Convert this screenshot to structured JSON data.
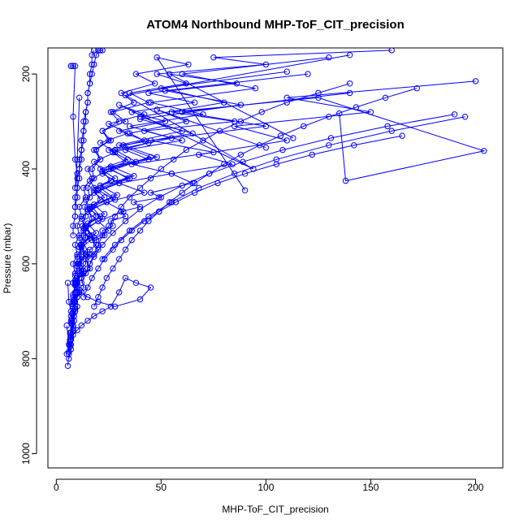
{
  "chart_data": {
    "type": "line",
    "title": "ATOM4 Northbound MHP-ToF_CIT_precision",
    "xlabel": "MHP-ToF_CIT_precision",
    "ylabel": "Pressure (mbar)",
    "xlim": [
      -4,
      213
    ],
    "ylim": [
      1030,
      145
    ],
    "y_inverted": true,
    "x_ticks": [
      0,
      50,
      100,
      150,
      200
    ],
    "y_ticks": [
      200,
      400,
      600,
      800,
      1000
    ],
    "x_tick_labels": [
      "0",
      "50",
      "100",
      "150",
      "200"
    ],
    "y_tick_labels": [
      "200",
      "400",
      "600",
      "800",
      "1000"
    ],
    "grid": false,
    "marker": "open-circle",
    "color": "#0000ff",
    "series": [
      {
        "x": [
          5.5,
          6,
          7,
          6.5,
          8,
          7,
          9,
          8,
          10,
          9,
          12,
          10,
          14,
          11,
          16,
          13,
          20,
          15,
          24,
          18,
          30,
          22,
          38,
          28,
          55,
          35,
          70,
          45,
          95,
          60,
          130
        ],
        "y": [
          815,
          790,
          770,
          745,
          730,
          710,
          690,
          670,
          650,
          635,
          615,
          600,
          580,
          565,
          545,
          530,
          510,
          490,
          470,
          450,
          430,
          410,
          385,
          360,
          335,
          310,
          285,
          260,
          230,
          200,
          165
        ]
      },
      {
        "x": [
          6,
          7,
          6.5,
          8,
          7.5,
          9,
          8,
          11,
          9,
          13,
          10,
          15,
          12,
          18,
          14,
          22,
          16,
          28,
          20,
          35,
          25,
          45,
          30,
          60,
          40,
          80,
          50,
          110
        ],
        "y": [
          800,
          780,
          760,
          740,
          720,
          700,
          680,
          660,
          640,
          620,
          600,
          585,
          565,
          545,
          525,
          505,
          485,
          465,
          445,
          420,
          400,
          375,
          350,
          320,
          290,
          260,
          230,
          195
        ]
      },
      {
        "x": [
          5,
          6.5,
          7,
          8,
          8.5,
          10,
          10,
          13,
          12,
          16,
          14,
          20,
          17,
          25,
          20,
          32,
          24,
          42,
          30,
          55,
          36,
          75,
          45,
          100,
          60,
          140
        ],
        "y": [
          790,
          770,
          750,
          730,
          710,
          690,
          670,
          650,
          630,
          610,
          590,
          570,
          550,
          530,
          510,
          490,
          470,
          450,
          430,
          410,
          390,
          365,
          340,
          310,
          280,
          240
        ]
      },
      {
        "x": [
          7,
          8,
          7,
          9,
          8,
          10,
          9,
          12,
          11,
          14,
          12,
          17,
          14,
          21,
          17,
          27,
          21,
          34,
          26,
          44,
          33,
          60,
          42,
          85,
          55,
          125,
          204,
          138,
          135
        ],
        "y": [
          760,
          740,
          720,
          700,
          680,
          660,
          640,
          620,
          600,
          580,
          560,
          540,
          520,
          500,
          480,
          460,
          440,
          420,
          400,
          380,
          360,
          340,
          320,
          300,
          280,
          250,
          362,
          425,
          283
        ]
      },
      {
        "x": [
          6.5,
          7,
          8,
          7.5,
          9,
          8.5,
          11,
          10,
          13,
          11,
          15,
          13,
          19,
          15,
          23,
          18,
          29,
          21,
          37,
          26,
          48,
          32,
          65,
          40,
          88,
          52,
          120
        ],
        "y": [
          775,
          755,
          735,
          715,
          695,
          675,
          655,
          635,
          615,
          595,
          575,
          555,
          535,
          515,
          495,
          475,
          455,
          435,
          415,
          395,
          375,
          350,
          325,
          295,
          265,
          235,
          200
        ]
      },
      {
        "x": [
          8,
          8.5,
          9,
          9,
          10,
          10,
          12,
          11,
          14,
          12,
          16,
          14,
          19,
          16,
          23,
          18,
          28,
          21,
          34,
          25,
          42,
          30,
          52,
          36,
          66,
          44,
          86,
          54,
          113
        ],
        "y": [
          740,
          720,
          700,
          680,
          660,
          640,
          620,
          600,
          580,
          560,
          540,
          520,
          500,
          480,
          460,
          440,
          420,
          400,
          380,
          360,
          340,
          320,
          300,
          280,
          260,
          240,
          220,
          200,
          335
        ]
      },
      {
        "x": [
          7,
          7.5,
          8,
          8,
          9,
          9,
          10,
          10,
          12,
          11,
          14,
          12,
          16,
          14,
          19,
          16,
          23,
          18,
          28,
          21,
          34,
          25,
          42,
          30,
          94,
          33,
          140
        ],
        "y": [
          725,
          705,
          685,
          665,
          645,
          625,
          605,
          585,
          565,
          545,
          525,
          505,
          485,
          465,
          445,
          425,
          405,
          385,
          365,
          345,
          325,
          305,
          285,
          265,
          400,
          245,
          160
        ]
      },
      {
        "x": [
          6,
          6.5,
          7,
          7.5,
          8,
          8,
          9,
          9,
          10,
          10,
          12,
          11,
          14,
          13,
          17,
          15,
          21,
          18,
          26,
          22,
          33,
          27,
          44,
          35,
          62,
          48,
          100
        ],
        "y": [
          785,
          765,
          745,
          725,
          705,
          685,
          665,
          645,
          625,
          605,
          585,
          565,
          545,
          525,
          505,
          485,
          465,
          445,
          425,
          405,
          385,
          365,
          345,
          325,
          300,
          275,
          355
        ]
      },
      {
        "x": [
          8,
          9,
          8,
          9,
          8,
          10,
          9,
          11,
          10,
          12,
          11,
          14,
          13,
          17,
          15,
          21,
          18,
          26,
          22,
          33,
          27,
          44,
          35,
          62,
          48,
          100,
          75,
          160
        ],
        "y": [
          680,
          660,
          640,
          620,
          600,
          580,
          560,
          540,
          520,
          500,
          480,
          460,
          440,
          420,
          400,
          380,
          360,
          340,
          320,
          300,
          280,
          260,
          240,
          220,
          200,
          180,
          165,
          150
        ]
      },
      {
        "x": [
          9,
          8.5,
          10,
          9.5,
          11,
          10.5,
          12,
          11.5,
          13,
          12.5,
          14,
          13.5,
          16,
          15,
          18,
          17,
          21,
          19,
          25,
          22,
          30,
          26,
          37,
          31,
          47,
          38,
          63,
          48,
          90
        ],
        "y": [
          700,
          680,
          660,
          640,
          620,
          600,
          580,
          560,
          540,
          520,
          500,
          480,
          460,
          440,
          420,
          400,
          380,
          360,
          340,
          320,
          300,
          280,
          260,
          240,
          220,
          200,
          180,
          165,
          445
        ]
      },
      {
        "x": [
          10,
          11,
          12,
          12,
          14,
          14,
          16,
          16,
          19,
          19,
          23,
          22,
          27,
          26,
          33,
          31,
          40,
          37,
          50,
          45,
          65,
          55,
          84,
          68,
          110,
          85,
          150,
          110,
          200
        ],
        "y": [
          640,
          630,
          620,
          610,
          600,
          590,
          580,
          570,
          560,
          550,
          540,
          530,
          520,
          510,
          500,
          490,
          480,
          470,
          460,
          450,
          430,
          410,
          390,
          370,
          340,
          310,
          280,
          250,
          215
        ]
      },
      {
        "x": [
          12,
          14,
          16,
          18,
          20,
          22,
          25,
          28,
          31,
          35,
          40,
          45,
          50,
          56,
          62,
          70,
          78,
          88,
          98,
          110,
          125,
          140
        ],
        "y": [
          640,
          620,
          600,
          580,
          560,
          540,
          520,
          500,
          480,
          460,
          440,
          420,
          400,
          380,
          360,
          340,
          320,
          300,
          280,
          260,
          240,
          220
        ]
      },
      {
        "x": [
          18,
          20,
          22,
          24,
          27,
          30,
          33,
          36,
          40,
          44,
          49,
          54,
          60,
          66,
          73,
          80,
          88,
          97,
          107,
          118,
          130,
          143,
          157,
          172
        ],
        "y": [
          690,
          670,
          650,
          630,
          610,
          590,
          570,
          550,
          530,
          510,
          490,
          470,
          450,
          430,
          410,
          390,
          370,
          350,
          330,
          310,
          290,
          270,
          250,
          230
        ]
      },
      {
        "x": [
          8,
          8,
          9,
          9,
          9,
          10,
          10,
          11,
          11,
          12,
          12,
          13,
          13,
          14,
          15,
          15,
          16,
          17,
          18,
          19,
          20,
          21,
          22
        ],
        "y": [
          540,
          520,
          500,
          480,
          460,
          440,
          420,
          400,
          380,
          360,
          340,
          320,
          300,
          280,
          260,
          240,
          220,
          200,
          180,
          160,
          150,
          150,
          150
        ]
      },
      {
        "x": [
          9,
          9,
          10,
          10,
          11,
          11,
          12,
          12,
          13,
          13,
          14,
          14,
          15,
          15,
          16,
          16,
          17,
          17,
          18,
          18
        ],
        "y": [
          500,
          480,
          460,
          440,
          420,
          400,
          380,
          360,
          340,
          320,
          300,
          280,
          260,
          240,
          220,
          200,
          180,
          160,
          150,
          150
        ]
      },
      {
        "x": [
          7,
          8,
          7,
          8,
          9,
          8,
          9,
          10,
          9,
          10,
          11
        ],
        "y": [
          183,
          183,
          183,
          183,
          183,
          290,
          380,
          410,
          440,
          380,
          250
        ]
      },
      {
        "x": [
          22,
          28,
          35,
          44,
          55,
          68,
          85,
          105,
          130,
          160,
          195
        ],
        "y": [
          590,
          560,
          530,
          500,
          470,
          440,
          410,
          380,
          350,
          320,
          290
        ]
      },
      {
        "x": [
          15,
          18,
          22,
          27,
          33,
          40,
          49,
          60,
          73,
          89,
          108,
          131,
          158,
          190
        ],
        "y": [
          610,
          585,
          560,
          535,
          510,
          485,
          460,
          435,
          410,
          385,
          360,
          335,
          310,
          285
        ]
      },
      {
        "x": [
          13,
          15,
          17,
          20,
          23,
          27,
          31,
          36,
          42,
          49,
          57,
          66,
          77,
          90,
          105,
          122,
          142,
          165
        ],
        "y": [
          670,
          650,
          630,
          610,
          590,
          570,
          550,
          530,
          510,
          490,
          470,
          450,
          430,
          410,
          390,
          370,
          350,
          330
        ]
      },
      {
        "x": [
          5.5,
          6,
          7,
          8,
          10,
          12,
          15,
          20,
          28,
          40,
          45,
          38,
          33,
          30,
          26,
          22,
          18,
          15,
          12,
          10,
          8,
          7,
          6,
          5
        ],
        "y": [
          640,
          680,
          700,
          690,
          670,
          660,
          670,
          680,
          690,
          675,
          650,
          640,
          630,
          660,
          690,
          700,
          710,
          720,
          730,
          740,
          750,
          760,
          770,
          730
        ]
      }
    ]
  }
}
